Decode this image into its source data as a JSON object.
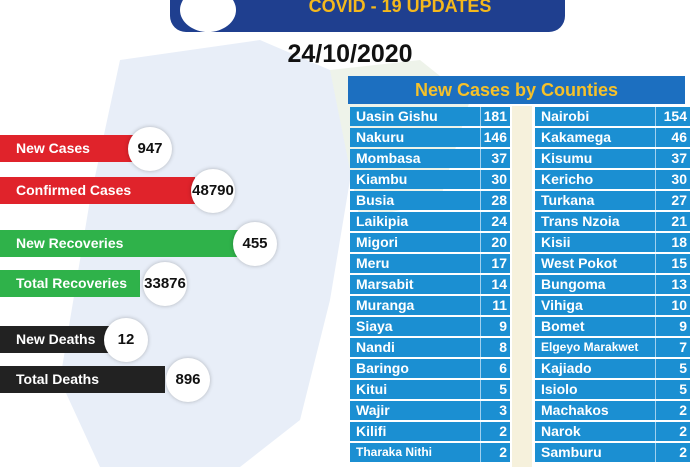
{
  "header": {
    "title": "COVID - 19 UPDATES",
    "date": "24/10/2020"
  },
  "stats": [
    {
      "label": "New Cases",
      "value": "947",
      "color": "#e0232b"
    },
    {
      "label": "Confirmed Cases",
      "value": "48790",
      "color": "#e0232b"
    },
    {
      "label": "New Recoveries",
      "value": "455",
      "color": "#2fb24a"
    },
    {
      "label": "Total Recoveries",
      "value": "33876",
      "color": "#2fb24a"
    },
    {
      "label": "New Deaths",
      "value": "12",
      "color": "#222222"
    },
    {
      "label": "Total Deaths",
      "value": "896",
      "color": "#222222"
    }
  ],
  "table": {
    "title": "New Cases by Counties",
    "columns": [
      [
        [
          "Uasin Gishu",
          "181"
        ],
        [
          "Nakuru",
          "146"
        ],
        [
          "Mombasa",
          "37"
        ],
        [
          "Kiambu",
          "30"
        ],
        [
          "Busia",
          "28"
        ],
        [
          "Laikipia",
          "24"
        ],
        [
          "Migori",
          "20"
        ],
        [
          "Meru",
          "17"
        ],
        [
          "Marsabit",
          "14"
        ],
        [
          "Muranga",
          "11"
        ],
        [
          "Siaya",
          "9"
        ],
        [
          "Nandi",
          "8"
        ],
        [
          "Baringo",
          "6"
        ],
        [
          "Kitui",
          "5"
        ],
        [
          "Wajir",
          "3"
        ],
        [
          "Kilifi",
          "2"
        ],
        [
          "Tharaka Nithi",
          "2"
        ]
      ],
      [
        [
          "Nairobi",
          "154"
        ],
        [
          "Kakamega",
          "46"
        ],
        [
          "Kisumu",
          "37"
        ],
        [
          "Kericho",
          "30"
        ],
        [
          "Turkana",
          "27"
        ],
        [
          "Trans Nzoia",
          "21"
        ],
        [
          "Kisii",
          "18"
        ],
        [
          "West Pokot",
          "15"
        ],
        [
          "Bungoma",
          "13"
        ],
        [
          "Vihiga",
          "10"
        ],
        [
          "Bomet",
          "9"
        ],
        [
          "Elgeyo Marakwet",
          "7"
        ],
        [
          "Kajiado",
          "5"
        ],
        [
          "Isiolo",
          "5"
        ],
        [
          "Machakos",
          "2"
        ],
        [
          "Narok",
          "2"
        ],
        [
          "Samburu",
          "2"
        ]
      ]
    ]
  }
}
